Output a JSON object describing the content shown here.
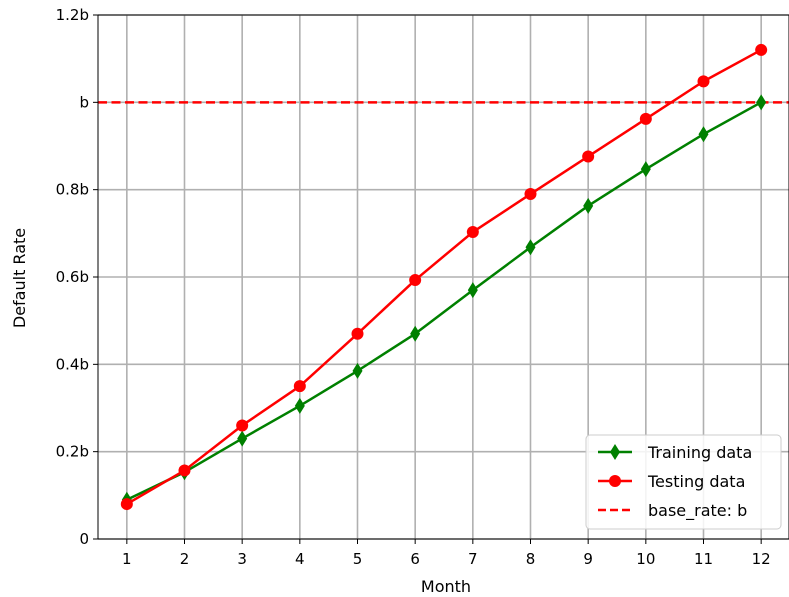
{
  "chart_data": {
    "type": "line",
    "xlabel": "Month",
    "ylabel": "Default Rate",
    "x": [
      1,
      2,
      3,
      4,
      5,
      6,
      7,
      8,
      9,
      10,
      11,
      12
    ],
    "xlim": [
      0.5,
      12.5
    ],
    "ylim": [
      0,
      1.2
    ],
    "yticks": [
      0,
      0.2,
      0.4,
      0.6,
      0.8,
      1.0,
      1.2
    ],
    "ytick_labels": [
      "0",
      "0.2b",
      "0.4b",
      "0.6b",
      "0.8b",
      "b",
      "1.2b"
    ],
    "grid": true,
    "legend_position": "bottom-right",
    "series": [
      {
        "name": "Training data",
        "color": "#008000",
        "marker": "thin-diamond",
        "values": [
          0.09,
          0.153,
          0.23,
          0.305,
          0.385,
          0.47,
          0.57,
          0.668,
          0.763,
          0.847,
          0.927,
          1.0
        ]
      },
      {
        "name": "Testing data",
        "color": "#ff0000",
        "marker": "circle",
        "values": [
          0.08,
          0.157,
          0.26,
          0.35,
          0.47,
          0.593,
          0.703,
          0.79,
          0.876,
          0.962,
          1.048,
          1.12
        ]
      }
    ],
    "reference_line": {
      "name": "base_rate: b",
      "value": 1.0,
      "color": "#ff0000",
      "style": "dashed"
    }
  }
}
